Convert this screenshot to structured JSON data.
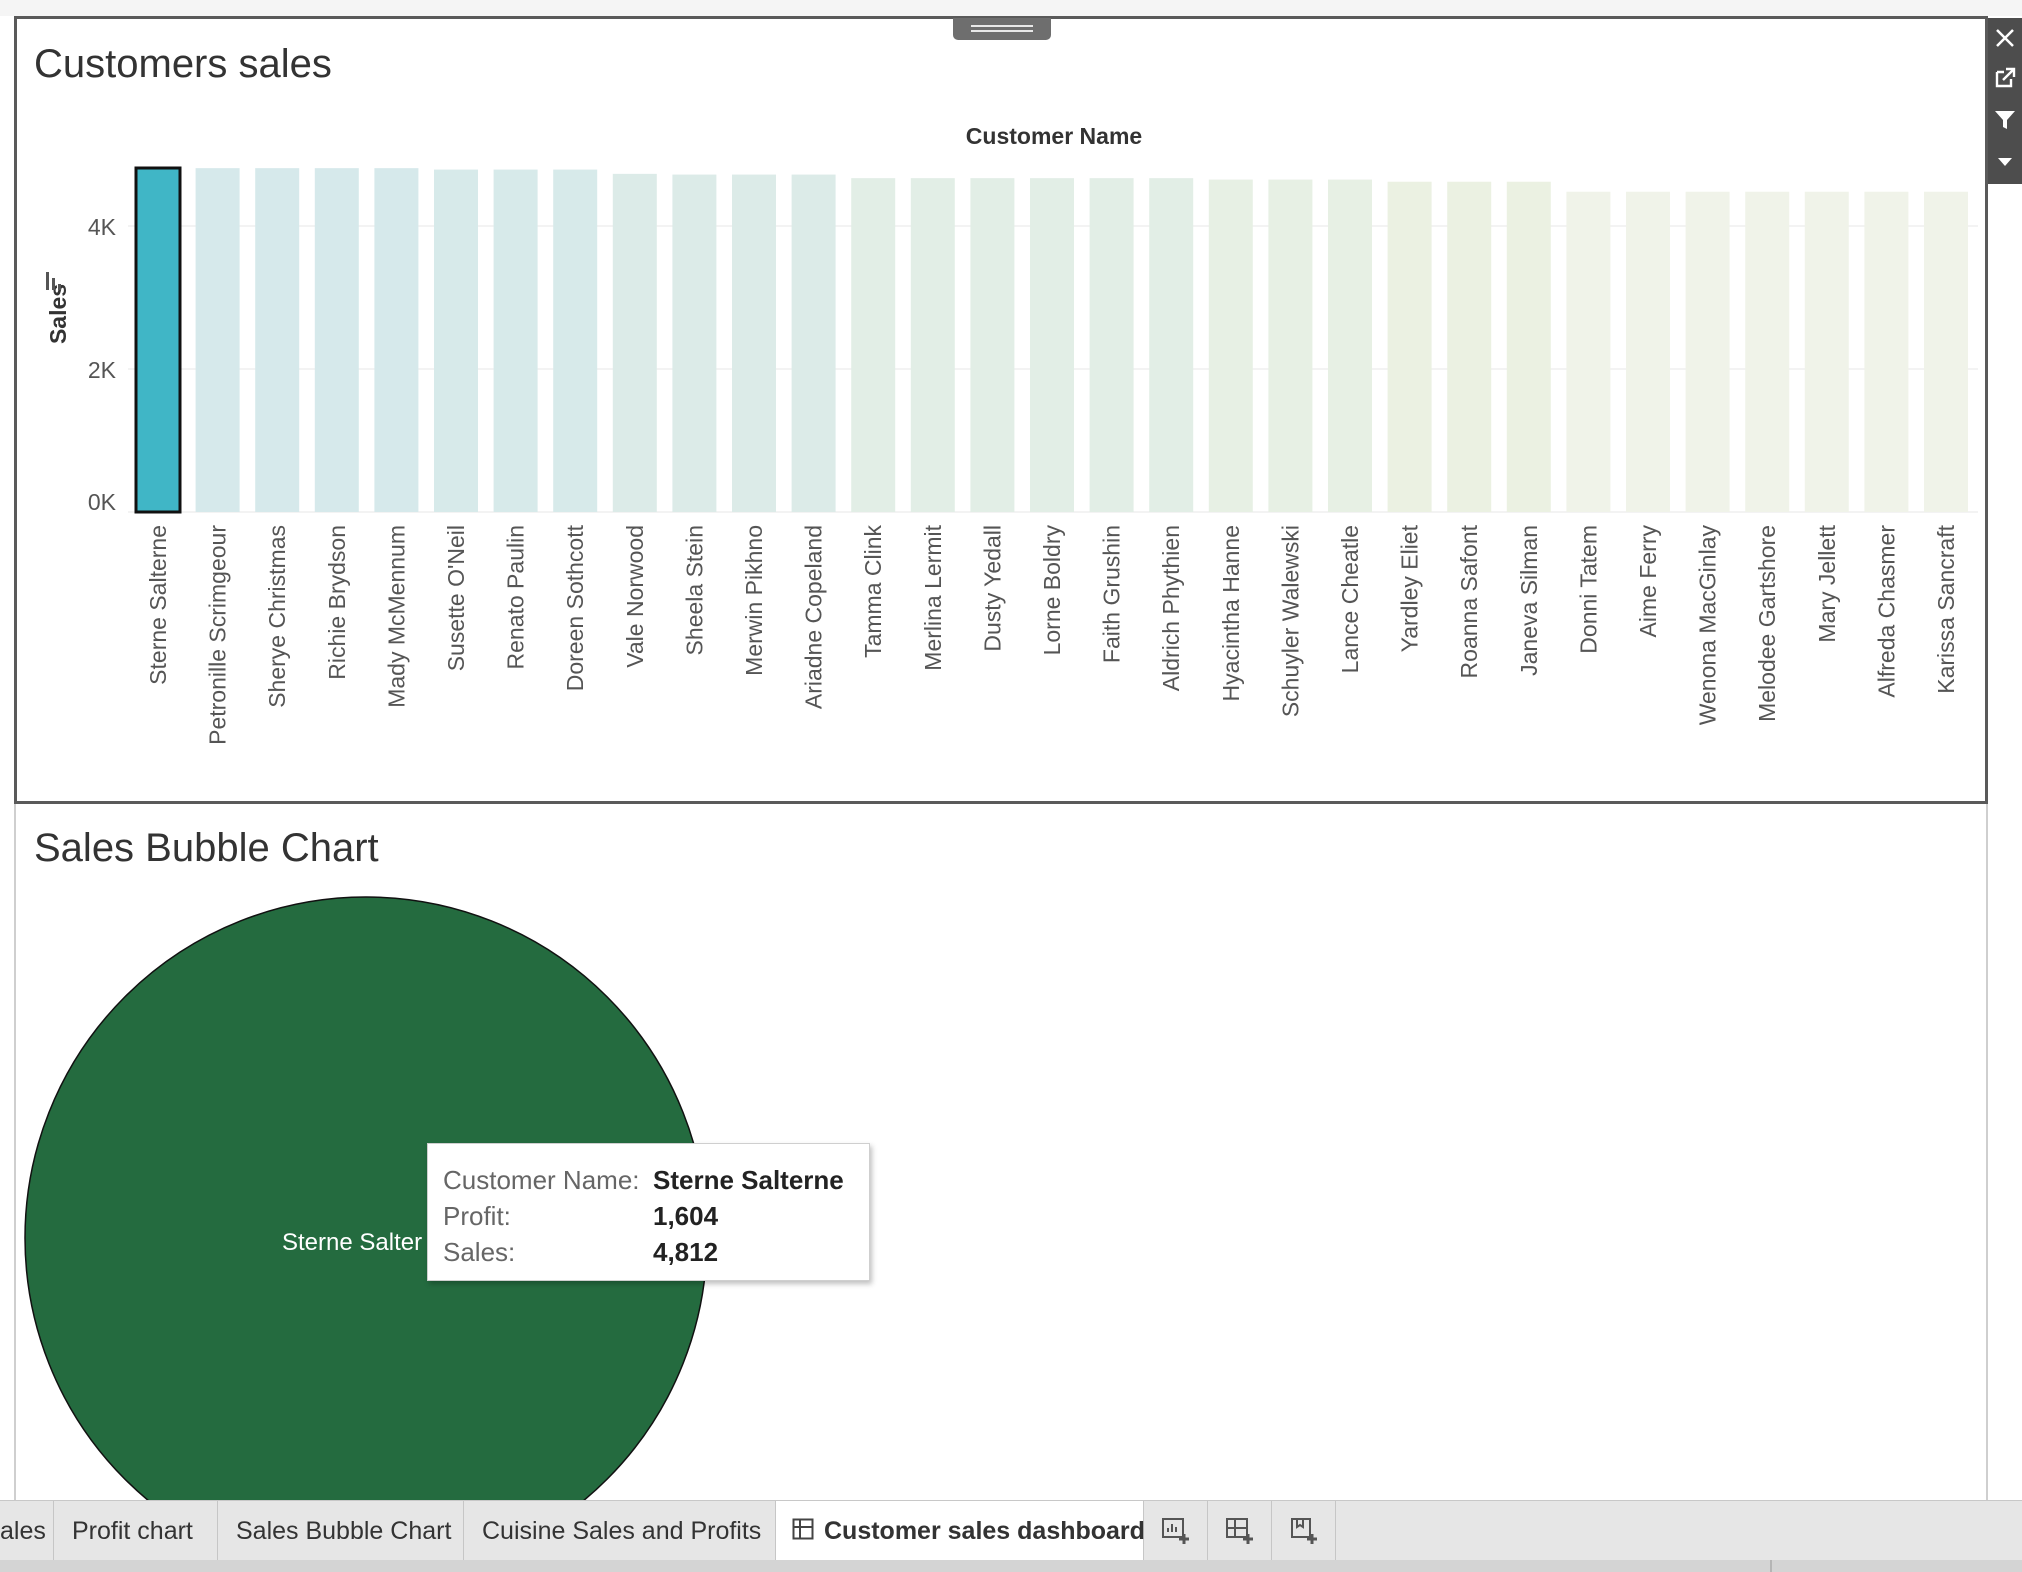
{
  "dashboard": {
    "bar_title": "Customers sales",
    "bubble_title": "Sales Bubble Chart"
  },
  "chart_data": [
    {
      "type": "bar",
      "title": "Customers sales",
      "xlabel": "Customer Name",
      "ylabel": "Sales",
      "x_axis_position": "top",
      "ylim": [
        0,
        4812
      ],
      "yticks": [
        0,
        2000,
        4000
      ],
      "ytick_labels": [
        "0K",
        "2K",
        "4K"
      ],
      "grid": true,
      "sorted": "descending",
      "selected": "Sterne Salterne",
      "categories": [
        "Sterne Salterne",
        "Petronille Scrimgeour",
        "Sherye Christmas",
        "Richie Brydson",
        "Mady McMennum",
        "Susette O'Neil",
        "Renato Paulin",
        "Doreen Sothcott",
        "Vale Norwood",
        "Sheela Stein",
        "Merwin Pikhno",
        "Ariadne Copeland",
        "Tamma Clink",
        "Merlina Lermit",
        "Dusty Yedall",
        "Lorne Boldry",
        "Faith Grushin",
        "Aldrich Phythien",
        "Hyacintha Hanne",
        "Schuyler Walewski",
        "Lance Cheatle",
        "Yardley Eliet",
        "Roanna Safont",
        "Janeva Silman",
        "Donni Tatem",
        "Aime Ferry",
        "Wenona MacGinlay",
        "Melodee Gartshore",
        "Mary Jellett",
        "Alfreda Chasmer",
        "Karissa Sancraft"
      ],
      "values": [
        4812,
        4810,
        4810,
        4810,
        4810,
        4790,
        4790,
        4790,
        4730,
        4720,
        4720,
        4720,
        4670,
        4670,
        4670,
        4670,
        4670,
        4670,
        4650,
        4650,
        4650,
        4620,
        4620,
        4620,
        4480,
        4480,
        4480,
        4480,
        4480,
        4480,
        4480
      ],
      "colors": [
        "#40b6c6",
        "#d6e9eb",
        "#d6e9eb",
        "#d6e9eb",
        "#d6e9eb",
        "#d7eaea",
        "#d7eaea",
        "#d7eaea",
        "#dcebe8",
        "#dcebe8",
        "#dcebe8",
        "#dcebe8",
        "#e2eee6",
        "#e2eee6",
        "#e2eee6",
        "#e2eee6",
        "#e2eee6",
        "#e2eee6",
        "#e7f0e4",
        "#e7f0e4",
        "#e7f0e4",
        "#ebf1e2",
        "#ebf1e2",
        "#ebf1e2",
        "#f0f3e9",
        "#f0f3e9",
        "#f0f3e9",
        "#f0f3e9",
        "#f0f3e9",
        "#f0f3e9",
        "#f0f3e9"
      ]
    },
    {
      "type": "bubble",
      "title": "Sales Bubble Chart",
      "bubbles": [
        {
          "label": "Sterne Salter",
          "customer": "Sterne Salterne",
          "profit": 1604,
          "sales": 4812,
          "color": "#246b3f"
        }
      ]
    }
  ],
  "tooltip": {
    "rows": [
      {
        "key": "Customer Name:",
        "value": "Sterne Salterne"
      },
      {
        "key": "Profit:",
        "value": "1,604"
      },
      {
        "key": "Sales:",
        "value": "4,812"
      }
    ]
  },
  "tabs": [
    {
      "label": "ales",
      "active": false
    },
    {
      "label": "Profit chart",
      "active": false
    },
    {
      "label": "Sales Bubble Chart",
      "active": false
    },
    {
      "label": "Cuisine Sales and Profits",
      "active": false
    },
    {
      "label": "Customer sales dashboard",
      "active": true,
      "icon": "dashboard-grid-icon"
    }
  ],
  "new_buttons": [
    "new-worksheet-icon",
    "new-dashboard-icon",
    "new-story-icon"
  ],
  "side_tools": [
    "close-icon",
    "external-link-icon",
    "filter-icon",
    "dropdown-arrow-icon"
  ]
}
